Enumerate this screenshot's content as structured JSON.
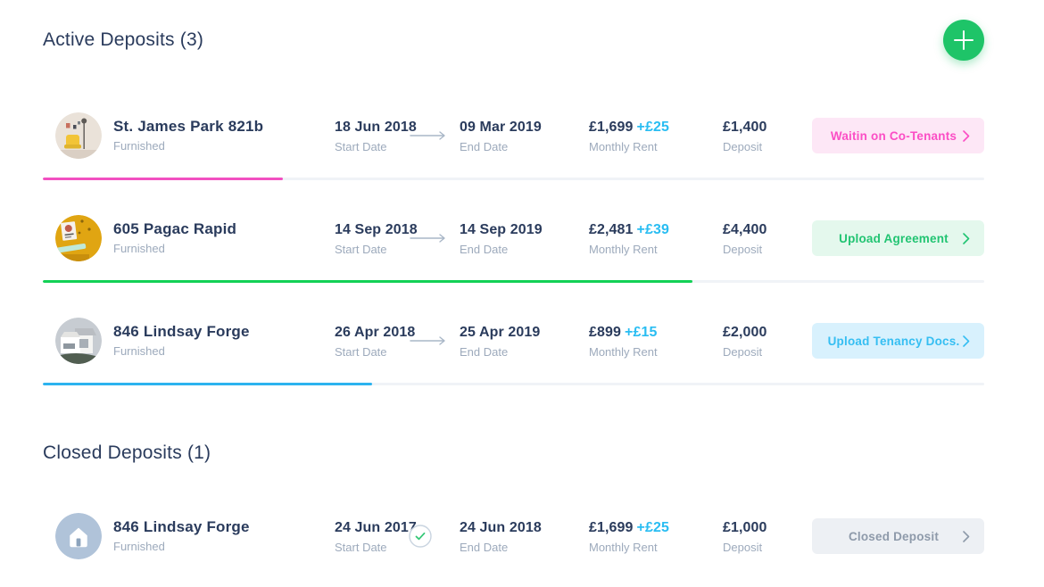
{
  "colors": {
    "navy_text": "#2A3B5C",
    "muted_label": "#9DAABC",
    "rent_increase_accent": "#29BDF2",
    "add_button_green": "#1EC468",
    "progress_track": "#F0F3F7"
  },
  "labels": {
    "start_date": "Start Date",
    "end_date": "End Date",
    "monthly_rent": "Monthly Rent",
    "deposit": "Deposit"
  },
  "sections": {
    "active": {
      "title": "Active Deposits (3)"
    },
    "closed": {
      "title": "Closed Deposits (1)"
    }
  },
  "deposits": {
    "active": [
      {
        "name": "St. James Park 821b",
        "property_type": "Furnished",
        "start_date": "18 Jun 2018",
        "end_date": "09 Mar 2019",
        "monthly_rent": "£1,699",
        "rent_increase": "+£25",
        "deposit": "£1,400",
        "status": "Waitin on Co-Tenants",
        "status_color": "#FB4EC5",
        "status_bg": "#FDE7F6",
        "progress_color": "#F24FC1",
        "progress_pct": 25.5,
        "avatar": "room-with-yellow-chair-photo"
      },
      {
        "name": "605 Pagac Rapid",
        "property_type": "Furnished",
        "start_date": "14 Sep 2018",
        "end_date": "14 Sep 2019",
        "monthly_rent": "£2,481",
        "rent_increase": "+£39",
        "deposit": "£4,400",
        "status": "Upload Agreement",
        "status_color": "#21C472",
        "status_bg": "#E4F8ED",
        "progress_color": "#13D156",
        "progress_pct": 69,
        "avatar": "yellow-room-poster-photo"
      },
      {
        "name": "846 Lindsay Forge",
        "property_type": "Furnished",
        "start_date": "26 Apr 2018",
        "end_date": "25 Apr 2019",
        "monthly_rent": "£899",
        "rent_increase": "+£15",
        "deposit": "£2,000",
        "status": "Upload Tenancy Docs.",
        "status_color": "#35BEF2",
        "status_bg": "#D8F1FD",
        "progress_color": "#2CB3EF",
        "progress_pct": 35,
        "avatar": "modern-white-house-photo"
      }
    ],
    "closed": [
      {
        "name": "846 Lindsay Forge",
        "property_type": "Furnished",
        "start_date": "24 Jun 2017",
        "end_date": "24 Jun 2018",
        "monthly_rent": "£1,699",
        "rent_increase": "+£25",
        "deposit": "£1,000",
        "status": "Closed Deposit",
        "status_color": "#8E9AAA",
        "status_bg": "#EDF0F4",
        "avatar": "house-placeholder-icon"
      }
    ]
  }
}
